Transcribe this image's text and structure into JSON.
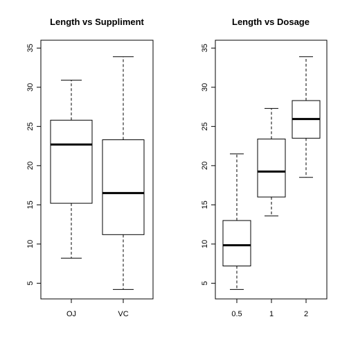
{
  "chart_data": [
    {
      "type": "boxplot",
      "title": "Length vs Suppliment",
      "xlabel": "",
      "ylabel": "",
      "ylim": [
        3,
        36
      ],
      "yticks": [
        5,
        10,
        15,
        20,
        25,
        30,
        35
      ],
      "categories": [
        "OJ",
        "VC"
      ],
      "boxes": [
        {
          "name": "OJ",
          "min": 8.2,
          "q1": 15.2,
          "median": 22.7,
          "q3": 25.8,
          "max": 30.9
        },
        {
          "name": "VC",
          "min": 4.2,
          "q1": 11.2,
          "median": 16.5,
          "q3": 23.3,
          "max": 33.9
        }
      ]
    },
    {
      "type": "boxplot",
      "title": "Length vs Dosage",
      "xlabel": "",
      "ylabel": "",
      "ylim": [
        3,
        36
      ],
      "yticks": [
        5,
        10,
        15,
        20,
        25,
        30,
        35
      ],
      "categories": [
        "0.5",
        "1",
        "2"
      ],
      "boxes": [
        {
          "name": "0.5",
          "min": 4.2,
          "q1": 7.2,
          "median": 9.85,
          "q3": 13.0,
          "max": 21.5
        },
        {
          "name": "1",
          "min": 13.6,
          "q1": 16.0,
          "median": 19.25,
          "q3": 23.4,
          "max": 27.3
        },
        {
          "name": "2",
          "min": 18.5,
          "q1": 23.5,
          "median": 25.95,
          "q3": 28.3,
          "max": 33.9
        }
      ]
    }
  ]
}
